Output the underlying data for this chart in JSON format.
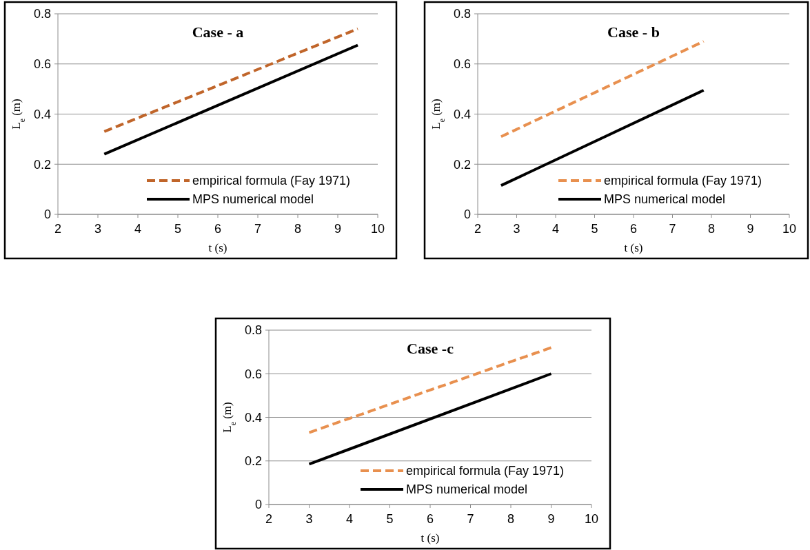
{
  "chart_data": [
    {
      "type": "line",
      "title": "Case - a",
      "xlabel": "t (s)",
      "ylabel": "L$_{e}$ (m)",
      "xlim": [
        2,
        10
      ],
      "xticks": [
        2,
        3,
        4,
        5,
        6,
        7,
        8,
        9,
        10
      ],
      "ylim": [
        0,
        0.8
      ],
      "yticks": [
        0,
        0.2,
        0.4,
        0.6,
        0.8
      ],
      "grid": "y",
      "legend": "bottom right",
      "series": [
        {
          "name": "empirical formula (Fay 1971)",
          "color": "#c0652a",
          "line_style": "dashed",
          "x": [
            3.16,
            9.5
          ],
          "values": [
            0.33,
            0.74
          ]
        },
        {
          "name": "MPS numerical model",
          "color": "#000000",
          "line_style": "solid",
          "x": [
            3.16,
            9.5
          ],
          "values": [
            0.24,
            0.675
          ]
        }
      ]
    },
    {
      "type": "line",
      "title": "Case - b",
      "xlabel": "t (s)",
      "ylabel": "L$_{e}$ (m)",
      "xlim": [
        2,
        10
      ],
      "xticks": [
        2,
        3,
        4,
        5,
        6,
        7,
        8,
        9,
        10
      ],
      "ylim": [
        0,
        0.8
      ],
      "yticks": [
        0,
        0.2,
        0.4,
        0.6,
        0.8
      ],
      "grid": "y",
      "legend": "bottom right",
      "series": [
        {
          "name": "empirical formula (Fay 1971)",
          "color": "#e8904f",
          "line_style": "dashed",
          "x": [
            2.6,
            7.8
          ],
          "values": [
            0.31,
            0.69
          ]
        },
        {
          "name": "MPS numerical model",
          "color": "#000000",
          "line_style": "solid",
          "x": [
            2.6,
            7.8
          ],
          "values": [
            0.115,
            0.495
          ]
        }
      ]
    },
    {
      "type": "line",
      "title": "Case -c",
      "xlabel": "t (s)",
      "ylabel": "L$_{e}$ (m)",
      "xlim": [
        2,
        10
      ],
      "xticks": [
        2,
        3,
        4,
        5,
        6,
        7,
        8,
        9,
        10
      ],
      "ylim": [
        0,
        0.8
      ],
      "yticks": [
        0,
        0.2,
        0.4,
        0.6,
        0.8
      ],
      "grid": "y",
      "legend": "bottom right",
      "series": [
        {
          "name": "empirical formula (Fay 1971)",
          "color": "#e8904f",
          "line_style": "dashed",
          "x": [
            3,
            9
          ],
          "values": [
            0.33,
            0.72
          ]
        },
        {
          "name": "MPS numerical model",
          "color": "#000000",
          "line_style": "solid",
          "x": [
            3,
            9
          ],
          "values": [
            0.185,
            0.6
          ]
        }
      ]
    }
  ]
}
